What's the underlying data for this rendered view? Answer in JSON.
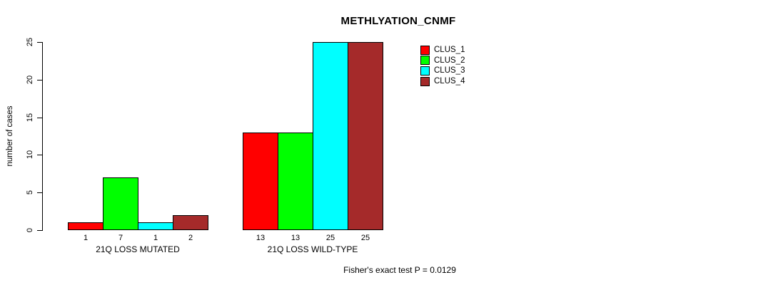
{
  "chart_data": {
    "type": "bar",
    "title": "METHLYATION_CNMF",
    "ylabel": "number of cases",
    "xlabel": "",
    "ylim": [
      0,
      25
    ],
    "yticks": [
      0,
      5,
      10,
      15,
      20,
      25
    ],
    "grid": false,
    "legend_position": "right",
    "categories": [
      "21Q LOSS MUTATED",
      "21Q LOSS WILD-TYPE"
    ],
    "series": [
      {
        "name": "CLUS_1",
        "color": "#ff0000",
        "values": [
          1,
          13
        ]
      },
      {
        "name": "CLUS_2",
        "color": "#00ff00",
        "values": [
          7,
          13
        ]
      },
      {
        "name": "CLUS_3",
        "color": "#00ffff",
        "values": [
          1,
          25
        ]
      },
      {
        "name": "CLUS_4",
        "color": "#a52a2a",
        "values": [
          2,
          25
        ]
      }
    ],
    "bar_value_labels": [
      [
        1,
        7,
        1,
        2
      ],
      [
        13,
        13,
        25,
        25
      ]
    ],
    "annotation": "Fisher's exact test P = 0.0129"
  },
  "colors": {
    "background": "#ffffff",
    "text": "#000000",
    "axis": "#000000",
    "bar_border": "#000000"
  }
}
